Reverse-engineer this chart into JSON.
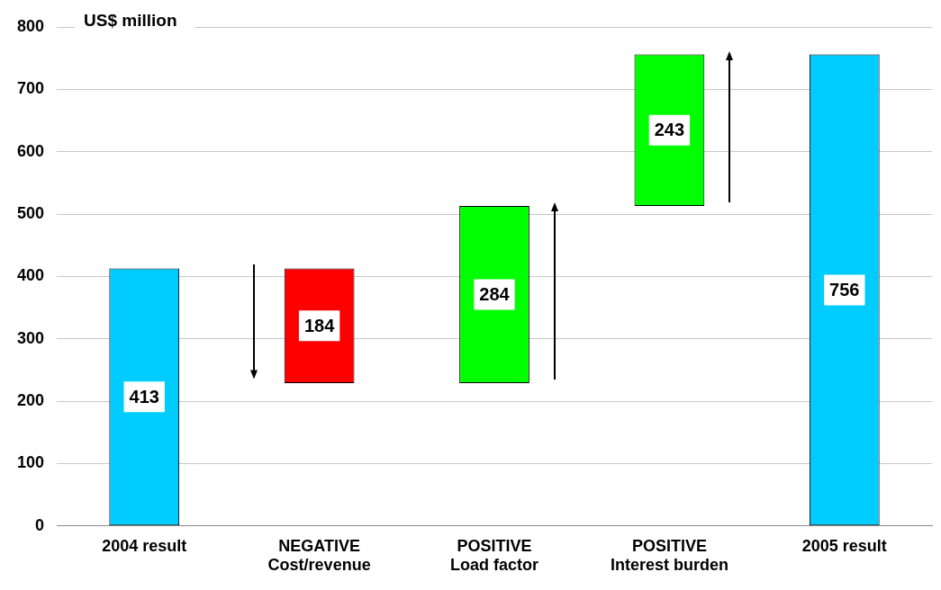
{
  "chart_data": {
    "type": "bar",
    "ylabel": "US$ million",
    "categories": [
      "2004 result",
      "NEGATIVE\nCost/revenue",
      "POSITIVE\nLoad factor",
      "POSITIVE\nInterest burden",
      "2005 result"
    ],
    "values": [
      413,
      -184,
      284,
      243,
      756
    ],
    "base": [
      0,
      413,
      229,
      513,
      0
    ],
    "colors": [
      "#00ccff",
      "#ff0000",
      "#00ff00",
      "#00ff00",
      "#00ccff"
    ],
    "value_labels": [
      "413",
      "184",
      "284",
      "243",
      "756"
    ],
    "ylim": [
      0,
      800
    ],
    "yticks": [
      0,
      100,
      200,
      300,
      400,
      500,
      600,
      700,
      800
    ],
    "grid": "y",
    "legend": false
  }
}
